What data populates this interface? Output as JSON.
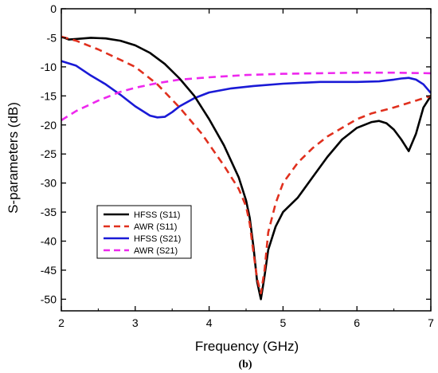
{
  "chart_data": {
    "type": "line",
    "xlabel": "Frequency (GHz)",
    "ylabel": "S-parameters (dB)",
    "caption": "(b)",
    "xlim": [
      2,
      7
    ],
    "ylim": [
      -52,
      0
    ],
    "x_ticks": [
      2,
      3,
      4,
      5,
      6,
      7
    ],
    "y_ticks": [
      0,
      -5,
      -10,
      -15,
      -20,
      -25,
      -30,
      -35,
      -40,
      -45,
      -50
    ],
    "grid": false,
    "legend_position": "lower-left",
    "series": [
      {
        "name": "HFSS (S11)",
        "color": "#000000",
        "dash": "solid",
        "x": [
          2.0,
          2.1,
          2.2,
          2.4,
          2.6,
          2.8,
          3.0,
          3.2,
          3.4,
          3.6,
          3.8,
          4.0,
          4.2,
          4.4,
          4.5,
          4.55,
          4.6,
          4.65,
          4.7,
          4.75,
          4.8,
          4.9,
          5.0,
          5.2,
          5.4,
          5.6,
          5.8,
          6.0,
          6.2,
          6.3,
          6.4,
          6.5,
          6.6,
          6.7,
          6.8,
          6.9,
          7.0
        ],
        "y": [
          -4.8,
          -5.3,
          -5.2,
          -5.0,
          -5.1,
          -5.5,
          -6.3,
          -7.6,
          -9.5,
          -12.0,
          -15.0,
          -19.0,
          -23.5,
          -29.0,
          -33.0,
          -36.0,
          -41.0,
          -47.0,
          -50.0,
          -46.0,
          -41.5,
          -37.5,
          -35.0,
          -32.5,
          -29.0,
          -25.5,
          -22.5,
          -20.5,
          -19.5,
          -19.3,
          -19.7,
          -20.8,
          -22.5,
          -24.5,
          -21.5,
          -17.0,
          -15.0
        ]
      },
      {
        "name": "AWR (S11)",
        "color": "#e0301e",
        "dash": "dashed",
        "x": [
          2.0,
          2.2,
          2.5,
          2.8,
          3.0,
          3.3,
          3.6,
          3.9,
          4.2,
          4.4,
          4.5,
          4.55,
          4.6,
          4.65,
          4.7,
          4.75,
          4.8,
          4.9,
          5.0,
          5.2,
          5.4,
          5.6,
          5.8,
          6.0,
          6.2,
          6.5,
          6.8,
          7.0
        ],
        "y": [
          -4.8,
          -5.5,
          -7.0,
          -8.8,
          -10.0,
          -13.0,
          -17.0,
          -21.5,
          -27.0,
          -31.0,
          -34.0,
          -37.0,
          -42.0,
          -46.5,
          -49.0,
          -45.0,
          -38.5,
          -33.5,
          -30.0,
          -26.5,
          -24.0,
          -22.0,
          -20.5,
          -19.0,
          -18.0,
          -17.0,
          -15.8,
          -15.0
        ]
      },
      {
        "name": "HFSS (S21)",
        "color": "#1a1ad6",
        "dash": "solid",
        "x": [
          2.0,
          2.2,
          2.4,
          2.6,
          2.8,
          3.0,
          3.2,
          3.3,
          3.4,
          3.5,
          3.6,
          3.8,
          4.0,
          4.3,
          4.6,
          5.0,
          5.5,
          6.0,
          6.3,
          6.5,
          6.6,
          6.7,
          6.8,
          6.9,
          7.0
        ],
        "y": [
          -9.0,
          -9.8,
          -11.5,
          -13.0,
          -14.8,
          -16.8,
          -18.4,
          -18.7,
          -18.6,
          -17.8,
          -16.8,
          -15.4,
          -14.4,
          -13.7,
          -13.3,
          -12.9,
          -12.6,
          -12.6,
          -12.5,
          -12.2,
          -12.0,
          -11.9,
          -12.2,
          -13.0,
          -14.5
        ]
      },
      {
        "name": "AWR (S21)",
        "color": "#ee28ee",
        "dash": "dashed",
        "x": [
          2.0,
          2.2,
          2.5,
          2.8,
          3.0,
          3.3,
          3.6,
          4.0,
          4.5,
          5.0,
          5.5,
          6.0,
          6.5,
          7.0
        ],
        "y": [
          -19.2,
          -17.6,
          -15.8,
          -14.3,
          -13.6,
          -12.8,
          -12.2,
          -11.8,
          -11.4,
          -11.2,
          -11.1,
          -11.0,
          -11.0,
          -11.1
        ]
      }
    ]
  }
}
